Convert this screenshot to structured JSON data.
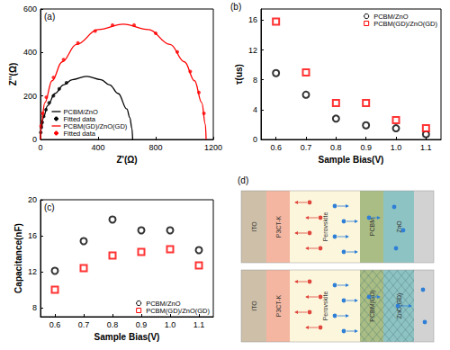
{
  "chart_data": [
    {
      "type": "line",
      "title": "(a)",
      "xlabel": "Z'(Ω)",
      "ylabel": "Z''(Ω)",
      "xlim": [
        0,
        1200
      ],
      "xticks": [
        0,
        400,
        800,
        1200
      ],
      "ylim": [
        0,
        600
      ],
      "yticks": [
        0,
        200,
        400,
        600
      ],
      "grid": false,
      "legend": "lower left",
      "series": [
        {
          "name": "PCBM/ZnO",
          "type": "line",
          "color": "#000000",
          "line_style": "solid",
          "x": [
            0,
            5,
            20,
            50,
            100,
            160,
            220,
            320,
            420,
            480,
            540,
            600,
            620,
            635,
            640
          ],
          "values": [
            0,
            51,
            101,
            156,
            211,
            251,
            275,
            290,
            275,
            251,
            211,
            140,
            101,
            51,
            0
          ]
        },
        {
          "name": "Fitted data",
          "type": "scatter",
          "color": "#000000",
          "marker": "circle",
          "x": [
            2,
            6,
            12,
            22,
            38,
            60,
            90,
            130,
            180
          ],
          "values": [
            32,
            56,
            79,
            106,
            137,
            169,
            201,
            233,
            261
          ]
        },
        {
          "name": "PCBM(GD)/ZnO(GD)",
          "type": "line",
          "color": "#ff0000",
          "line_style": "solid",
          "x": [
            0,
            5,
            30,
            80,
            150,
            250,
            400,
            575,
            750,
            900,
            1000,
            1070,
            1120,
            1145,
            1150
          ],
          "values": [
            0,
            70,
            169,
            270,
            357,
            437,
            505,
            530,
            505,
            437,
            357,
            270,
            169,
            70,
            0
          ]
        },
        {
          "name": "Fitted data",
          "type": "scatter",
          "color": "#ff0000",
          "marker": "circle",
          "x": [
            4,
            15,
            40,
            90,
            160,
            260,
            380,
            500,
            650,
            800,
            950,
            1040,
            1100,
            1135
          ],
          "values": [
            62,
            120,
            194,
            285,
            367,
            444,
            499,
            526,
            526,
            488,
            402,
            312,
            216,
            120
          ]
        }
      ]
    },
    {
      "type": "scatter",
      "title": "(b)",
      "xlabel": "Sample Bias(V)",
      "ylabel": "τ(us)",
      "x": [
        0.6,
        0.7,
        0.8,
        0.9,
        1.0,
        1.1
      ],
      "xlim": [
        0.55,
        1.15
      ],
      "xticks": [
        0.6,
        0.7,
        0.8,
        0.9,
        {
          "value": 1.0,
          "label": "1.0"
        },
        1.1
      ],
      "ylim": [
        0,
        17.5
      ],
      "yticks": [
        0,
        4,
        8,
        12,
        16
      ],
      "grid": false,
      "legend": "upper right",
      "series": [
        {
          "name": "PCBM/ZnO",
          "color": "#000000",
          "marker": "open_circle",
          "values": [
            8.9,
            6.0,
            2.8,
            1.9,
            1.5,
            0.7
          ]
        },
        {
          "name": "PCBM(GD)/ZnO(GD)",
          "color": "#ff0000",
          "marker": "open_square",
          "values": [
            15.8,
            9.0,
            4.9,
            4.9,
            2.6,
            1.5
          ]
        }
      ]
    },
    {
      "type": "scatter",
      "title": "(c)",
      "xlabel": "Sample Bias(V)",
      "ylabel": "Capacitance(nF)",
      "x": [
        0.6,
        0.7,
        0.8,
        0.9,
        1.0,
        1.1
      ],
      "xlim": [
        0.55,
        1.15
      ],
      "xticks": [
        0.6,
        0.7,
        0.8,
        0.9,
        {
          "value": 1.0,
          "label": "1.0"
        },
        1.1
      ],
      "ylim": [
        7,
        20
      ],
      "yticks": [
        8,
        12,
        16,
        20
      ],
      "grid": false,
      "legend": "lower right",
      "series": [
        {
          "name": "PCBM/ZnO",
          "color": "#000000",
          "marker": "open_circle",
          "values": [
            12.1,
            15.4,
            17.8,
            16.6,
            16.6,
            14.4
          ]
        },
        {
          "name": "PCBM(GD)/ZnO(GD)",
          "color": "#ff0000",
          "marker": "open_square",
          "values": [
            10.0,
            12.4,
            13.8,
            14.2,
            14.5,
            12.7
          ]
        }
      ]
    }
  ],
  "diagram": {
    "title": "(d)",
    "devices": [
      {
        "layers": [
          "ITO",
          "P3CT-K",
          "Perovskite",
          "PCBM",
          "ZnO"
        ]
      },
      {
        "layers": [
          "ITO",
          "P3CT-K",
          "Perovskite",
          "PCBM(GD)",
          "ZnO(GD)"
        ]
      }
    ]
  }
}
